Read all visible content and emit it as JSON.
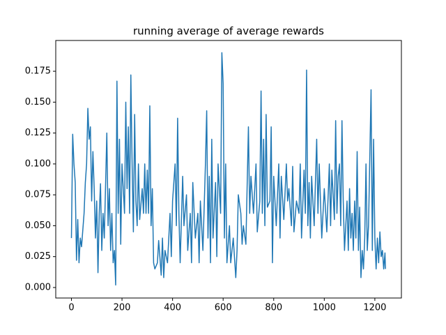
{
  "chart_data": {
    "type": "line",
    "title": "running average of average rewards",
    "x": [
      0,
      5,
      10,
      15,
      20,
      25,
      30,
      35,
      40,
      50,
      55,
      60,
      65,
      70,
      75,
      80,
      85,
      90,
      95,
      100,
      105,
      110,
      115,
      120,
      125,
      130,
      140,
      145,
      150,
      155,
      160,
      165,
      170,
      175,
      180,
      185,
      190,
      195,
      200,
      210,
      215,
      220,
      225,
      230,
      235,
      240,
      245,
      250,
      255,
      260,
      265,
      270,
      280,
      285,
      290,
      295,
      300,
      305,
      310,
      315,
      320,
      325,
      330,
      340,
      345,
      355,
      360,
      365,
      370,
      380,
      390,
      395,
      400,
      410,
      415,
      420,
      425,
      430,
      440,
      445,
      455,
      460,
      470,
      475,
      480,
      490,
      500,
      505,
      510,
      520,
      530,
      535,
      540,
      545,
      550,
      555,
      560,
      570,
      575,
      580,
      590,
      595,
      600,
      605,
      610,
      615,
      625,
      630,
      640,
      650,
      655,
      660,
      670,
      675,
      680,
      690,
      700,
      705,
      710,
      720,
      730,
      735,
      745,
      750,
      755,
      760,
      765,
      770,
      775,
      785,
      790,
      795,
      800,
      810,
      820,
      825,
      830,
      840,
      850,
      855,
      860,
      870,
      875,
      880,
      890,
      900,
      905,
      910,
      920,
      925,
      930,
      935,
      940,
      945,
      950,
      960,
      970,
      975,
      980,
      990,
      1000,
      1010,
      1020,
      1025,
      1030,
      1040,
      1045,
      1050,
      1055,
      1060,
      1065,
      1070,
      1075,
      1080,
      1090,
      1095,
      1100,
      1105,
      1110,
      1115,
      1120,
      1125,
      1130,
      1135,
      1140,
      1145,
      1150,
      1155,
      1160,
      1165,
      1170,
      1175,
      1185,
      1190,
      1195,
      1200,
      1205,
      1210,
      1215,
      1220,
      1225,
      1230,
      1235,
      1240,
      1242
    ],
    "series": [
      {
        "name": "running average",
        "color": "#1f77b4",
        "values": [
          0.04,
          0.124,
          0.1,
          0.085,
          0.022,
          0.055,
          0.02,
          0.04,
          0.033,
          0.06,
          0.085,
          0.1,
          0.145,
          0.12,
          0.13,
          0.07,
          0.11,
          0.08,
          0.04,
          0.07,
          0.012,
          0.06,
          0.084,
          0.03,
          0.06,
          0.04,
          0.125,
          0.05,
          0.08,
          0.03,
          0.06,
          0.02,
          0.03,
          0.002,
          0.167,
          0.06,
          0.12,
          0.035,
          0.1,
          0.06,
          0.15,
          0.08,
          0.13,
          0.06,
          0.172,
          0.1,
          0.045,
          0.14,
          0.07,
          0.05,
          0.1,
          0.055,
          0.08,
          0.06,
          0.1,
          0.06,
          0.095,
          0.06,
          0.147,
          0.05,
          0.08,
          0.02,
          0.015,
          0.02,
          0.038,
          0.01,
          0.04,
          0.008,
          0.03,
          0.02,
          0.06,
          0.025,
          0.07,
          0.1,
          0.05,
          0.137,
          0.06,
          0.02,
          0.09,
          0.05,
          0.075,
          0.03,
          0.06,
          0.02,
          0.085,
          0.04,
          0.06,
          0.02,
          0.07,
          0.03,
          0.1,
          0.143,
          0.04,
          0.09,
          0.02,
          0.12,
          0.04,
          0.085,
          0.025,
          0.1,
          0.06,
          0.19,
          0.165,
          0.04,
          0.1,
          0.02,
          0.05,
          0.02,
          0.04,
          0.008,
          0.03,
          0.075,
          0.06,
          0.035,
          0.05,
          0.035,
          0.13,
          0.06,
          0.09,
          0.06,
          0.1,
          0.045,
          0.07,
          0.159,
          0.06,
          0.12,
          0.05,
          0.14,
          0.065,
          0.07,
          0.13,
          0.02,
          0.09,
          0.05,
          0.1,
          0.04,
          0.09,
          0.055,
          0.1,
          0.07,
          0.08,
          0.05,
          0.098,
          0.045,
          0.07,
          0.06,
          0.1,
          0.04,
          0.095,
          0.06,
          0.176,
          0.05,
          0.085,
          0.04,
          0.09,
          0.05,
          0.12,
          0.06,
          0.1,
          0.04,
          0.08,
          0.045,
          0.1,
          0.05,
          0.095,
          0.055,
          0.135,
          0.06,
          0.09,
          0.1,
          0.05,
          0.135,
          0.07,
          0.03,
          0.07,
          0.03,
          0.08,
          0.04,
          0.06,
          0.03,
          0.07,
          0.04,
          0.11,
          0.03,
          0.065,
          0.008,
          0.03,
          0.015,
          0.04,
          0.1,
          0.03,
          0.05,
          0.16,
          0.03,
          0.12,
          0.04,
          0.015,
          0.04,
          0.02,
          0.045,
          0.025,
          0.03,
          0.015,
          0.028,
          0.015
        ]
      }
    ],
    "xlim": [
      -62,
      1305
    ],
    "ylim": [
      -0.0085,
      0.1999
    ],
    "xticks": [
      0,
      200,
      400,
      600,
      800,
      1000,
      1200
    ],
    "yticks": [
      {
        "value": 0,
        "label": "0.000"
      },
      {
        "value": 0.025,
        "label": "0.025"
      },
      {
        "value": 0.05,
        "label": "0.050"
      },
      {
        "value": 0.075,
        "label": "0.075"
      },
      {
        "value": 0.1,
        "label": "0.100"
      },
      {
        "value": 0.125,
        "label": "0.125"
      },
      {
        "value": 0.15,
        "label": "0.150"
      },
      {
        "value": 0.175,
        "label": "0.175"
      }
    ]
  }
}
